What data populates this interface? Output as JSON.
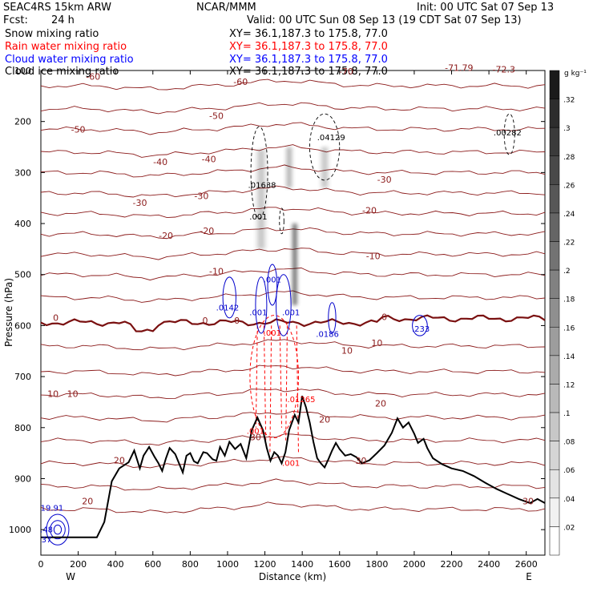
{
  "header": {
    "model": "SEAC4RS 15km ARW",
    "center": "NCAR/MMM",
    "init": "Init: 00 UTC Sat 07 Sep 13",
    "fcst_label": "Fcst:",
    "fcst_value": "24 h",
    "valid": "Valid: 00 UTC Sun 08 Sep 13 (19 CDT Sat 07 Sep 13)"
  },
  "fields": [
    {
      "label": "Snow mixing ratio",
      "xy": "XY=  36.1,187.3 to 175.8, 77.0",
      "color": "#000000"
    },
    {
      "label": "Rain water mixing ratio",
      "xy": "XY=  36.1,187.3 to 175.8, 77.0",
      "color": "#ff0000"
    },
    {
      "label": "Cloud water mixing ratio",
      "xy": "XY=  36.1,187.3 to 175.8, 77.0",
      "color": "#0000ff"
    },
    {
      "label": "Cloud ice mixing ratio",
      "xy": "XY=  36.1,187.3 to 175.8, 77.0",
      "color": "#000000"
    }
  ],
  "colorbar": {
    "unit": "g kg⁻¹",
    "ticks": [
      ".32",
      ".3",
      ".28",
      ".26",
      ".24",
      ".22",
      ".2",
      ".18",
      ".16",
      ".14",
      ".12",
      ".1",
      ".08",
      ".06",
      ".04",
      ".02"
    ]
  },
  "colors": {
    "temperature": "#8b1a1a",
    "rain": "#ff0000",
    "cloud_water": "#0000cc",
    "terrain": "#000000"
  },
  "chart_data": {
    "type": "cross-section",
    "xlabel": "Distance (km)",
    "ylabel": "Pressure (hPa)",
    "xlim": [
      0,
      2700
    ],
    "ylim": [
      1050,
      100
    ],
    "x_ticks": [
      "0",
      "200",
      "400",
      "600",
      "800",
      "1000",
      "1200",
      "1400",
      "1600",
      "1800",
      "2000",
      "2200",
      "2400",
      "2600"
    ],
    "y_ticks": [
      "100",
      "200",
      "300",
      "400",
      "500",
      "600",
      "700",
      "800",
      "900",
      "1000"
    ],
    "endpoints": {
      "left": "W",
      "right": "E"
    },
    "temperature_labels": [
      {
        "text": "-60",
        "x": 280,
        "p": 118
      },
      {
        "text": "-60",
        "x": 1070,
        "p": 128
      },
      {
        "text": "-50",
        "x": 200,
        "p": 222
      },
      {
        "text": "-50",
        "x": 940,
        "p": 195
      },
      {
        "text": "-40",
        "x": 640,
        "p": 285
      },
      {
        "text": "-40",
        "x": 900,
        "p": 280
      },
      {
        "text": "-30",
        "x": 530,
        "p": 365
      },
      {
        "text": "-30",
        "x": 860,
        "p": 352
      },
      {
        "text": "-30",
        "x": 1840,
        "p": 320
      },
      {
        "text": "-20",
        "x": 670,
        "p": 430
      },
      {
        "text": "-20",
        "x": 890,
        "p": 420
      },
      {
        "text": "-20",
        "x": 1760,
        "p": 380
      },
      {
        "text": "-10",
        "x": 940,
        "p": 500
      },
      {
        "text": "-10",
        "x": 1780,
        "p": 470
      },
      {
        "text": "0",
        "x": 80,
        "p": 591
      },
      {
        "text": "0",
        "x": 880,
        "p": 596
      },
      {
        "text": "0",
        "x": 1050,
        "p": 596
      },
      {
        "text": "0",
        "x": 1840,
        "p": 589
      },
      {
        "text": "10",
        "x": 1640,
        "p": 655
      },
      {
        "text": "10",
        "x": 1800,
        "p": 640
      },
      {
        "text": "10",
        "x": 65,
        "p": 740
      },
      {
        "text": "10",
        "x": 170,
        "p": 740
      },
      {
        "text": "20",
        "x": 1520,
        "p": 790
      },
      {
        "text": "20",
        "x": 1820,
        "p": 759
      },
      {
        "text": "20",
        "x": 420,
        "p": 870
      },
      {
        "text": "20",
        "x": 250,
        "p": 950
      },
      {
        "text": "30",
        "x": 1150,
        "p": 825
      },
      {
        "text": "30",
        "x": 1715,
        "p": 871
      },
      {
        "text": "30",
        "x": 2610,
        "p": 950
      }
    ],
    "top_labels": [
      {
        "text": "-70",
        "x": 1635,
        "p": 108
      },
      {
        "text": "-71.79",
        "x": 2240,
        "p": 101
      },
      {
        "text": "-72.3",
        "x": 2480,
        "p": 104
      }
    ],
    "ice_extrema": [
      {
        "text": ".04129",
        "x": 1555,
        "p": 237
      },
      {
        "text": ".01638",
        "x": 1185,
        "p": 330
      },
      {
        "text": ".001",
        "x": 1165,
        "p": 392
      },
      {
        "text": ".00282",
        "x": 2500,
        "p": 227
      }
    ],
    "cloud_water_extrema": [
      {
        "text": ".0142",
        "x": 1000,
        "p": 570
      },
      {
        "text": ".001",
        "x": 1240,
        "p": 515
      },
      {
        "text": ".001",
        "x": 1165,
        "p": 580
      },
      {
        "text": ".001",
        "x": 1340,
        "p": 580
      },
      {
        "text": ".0186",
        "x": 1535,
        "p": 622
      },
      {
        "text": ".233",
        "x": 2035,
        "p": 612
      },
      {
        "text": "19.91",
        "x": 60,
        "p": 963
      },
      {
        "text": ".48",
        "x": 30,
        "p": 1005
      },
      {
        "text": "37",
        "x": 30,
        "p": 1025
      }
    ],
    "rain_extrema": [
      {
        "text": ".001",
        "x": 1240,
        "p": 620
      },
      {
        "text": ".01265",
        "x": 1395,
        "p": 750
      },
      {
        "text": ".001",
        "x": 1150,
        "p": 812
      },
      {
        "text": ".001",
        "x": 1340,
        "p": 875
      }
    ],
    "terrain": [
      [
        0,
        1015
      ],
      [
        300,
        1015
      ],
      [
        340,
        985
      ],
      [
        380,
        905
      ],
      [
        420,
        880
      ],
      [
        470,
        868
      ],
      [
        500,
        845
      ],
      [
        530,
        880
      ],
      [
        550,
        855
      ],
      [
        580,
        838
      ],
      [
        610,
        858
      ],
      [
        630,
        870
      ],
      [
        650,
        885
      ],
      [
        670,
        860
      ],
      [
        690,
        840
      ],
      [
        720,
        852
      ],
      [
        740,
        870
      ],
      [
        760,
        888
      ],
      [
        780,
        855
      ],
      [
        800,
        850
      ],
      [
        820,
        866
      ],
      [
        840,
        870
      ],
      [
        870,
        848
      ],
      [
        890,
        850
      ],
      [
        920,
        862
      ],
      [
        940,
        865
      ],
      [
        960,
        838
      ],
      [
        985,
        855
      ],
      [
        1010,
        828
      ],
      [
        1040,
        842
      ],
      [
        1070,
        832
      ],
      [
        1100,
        860
      ],
      [
        1130,
        805
      ],
      [
        1160,
        780
      ],
      [
        1190,
        805
      ],
      [
        1210,
        840
      ],
      [
        1230,
        865
      ],
      [
        1250,
        848
      ],
      [
        1270,
        855
      ],
      [
        1290,
        870
      ],
      [
        1310,
        848
      ],
      [
        1330,
        805
      ],
      [
        1360,
        775
      ],
      [
        1380,
        790
      ],
      [
        1400,
        738
      ],
      [
        1420,
        760
      ],
      [
        1440,
        790
      ],
      [
        1460,
        828
      ],
      [
        1480,
        860
      ],
      [
        1500,
        870
      ],
      [
        1520,
        878
      ],
      [
        1540,
        862
      ],
      [
        1560,
        845
      ],
      [
        1580,
        830
      ],
      [
        1600,
        842
      ],
      [
        1630,
        855
      ],
      [
        1660,
        852
      ],
      [
        1690,
        858
      ],
      [
        1720,
        870
      ],
      [
        1760,
        864
      ],
      [
        1800,
        850
      ],
      [
        1840,
        835
      ],
      [
        1880,
        810
      ],
      [
        1910,
        782
      ],
      [
        1940,
        800
      ],
      [
        1970,
        790
      ],
      [
        2000,
        812
      ],
      [
        2020,
        830
      ],
      [
        2050,
        822
      ],
      [
        2070,
        840
      ],
      [
        2100,
        860
      ],
      [
        2150,
        872
      ],
      [
        2200,
        880
      ],
      [
        2260,
        885
      ],
      [
        2320,
        895
      ],
      [
        2380,
        908
      ],
      [
        2440,
        920
      ],
      [
        2500,
        930
      ],
      [
        2560,
        940
      ],
      [
        2620,
        948
      ],
      [
        2660,
        940
      ],
      [
        2700,
        948
      ]
    ]
  }
}
